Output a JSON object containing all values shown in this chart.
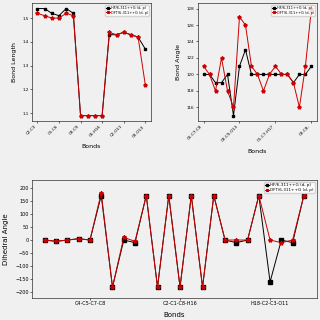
{
  "hf_color": "#000000",
  "dft_color": "#cc0000",
  "hf_label": "HF/6-311++G (d, p)",
  "dft_label": "DFT/6-311++G (d, p)",
  "background": "#f0f0f0",
  "bl_hf": [
    1.54,
    1.54,
    1.52,
    1.51,
    1.54,
    1.52,
    1.09,
    1.09,
    1.09,
    1.09,
    1.43,
    1.43,
    1.44,
    1.43,
    1.42,
    1.37
  ],
  "bl_dft": [
    1.52,
    1.51,
    1.5,
    1.5,
    1.52,
    1.51,
    1.09,
    1.09,
    1.09,
    1.09,
    1.44,
    1.43,
    1.44,
    1.43,
    1.42,
    1.22
  ],
  "bl_x_labels": [
    "C2-C3",
    "C5-C6",
    "C8-C9",
    "C6-H16",
    "C2-O11",
    "C8-O13"
  ],
  "bl_xlabel": "Bonds",
  "bl_ylabel": "Bond Length",
  "ba_hf": [
    120,
    120,
    119,
    119,
    120,
    115,
    121,
    123,
    120,
    120,
    120,
    120,
    120,
    120,
    120,
    119,
    120,
    120,
    121
  ],
  "ba_dft": [
    121,
    120,
    118,
    122,
    118,
    116,
    127,
    126,
    121,
    120,
    118,
    120,
    121,
    120,
    120,
    119,
    116,
    121,
    128
  ],
  "ba_x_labels": [
    "C6-C7-C8",
    "C8-C9-O13",
    "C5-C7-H17",
    "C8-C8-"
  ],
  "ba_xlabel": "Bonds",
  "ba_ylabel": "Bond Angle",
  "da_hf": [
    0,
    -5,
    0,
    5,
    0,
    170,
    -180,
    0,
    -10,
    170,
    -180,
    170,
    -180,
    170,
    -180,
    170,
    0,
    -10,
    0,
    170,
    -160,
    0,
    -10,
    170
  ],
  "da_dft": [
    0,
    -5,
    0,
    5,
    0,
    180,
    -180,
    10,
    -5,
    170,
    -180,
    170,
    -180,
    170,
    -180,
    170,
    0,
    0,
    0,
    170,
    0,
    -10,
    0,
    170
  ],
  "da_x_labels": [
    "C4-C5-C7-C8",
    "C2-C1-C8-H16",
    "H18-C2-C3-O11"
  ],
  "da_xlabel": "Bonds",
  "da_ylabel": "Dihedral Angle"
}
